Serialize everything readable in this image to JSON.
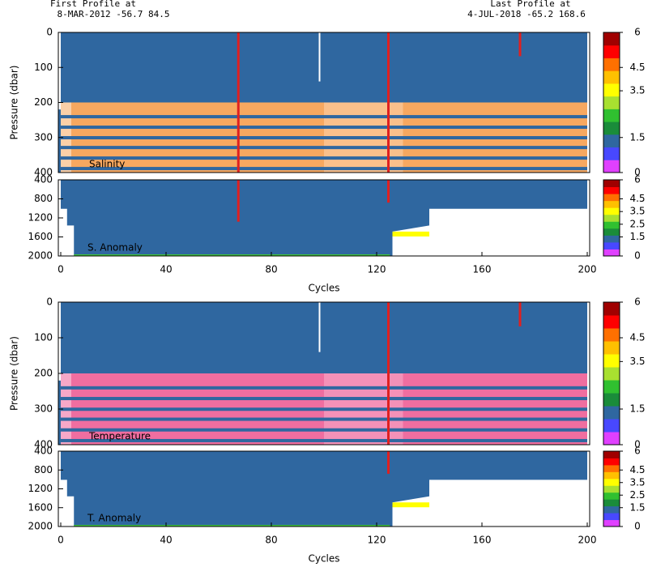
{
  "header": {
    "first_title": "First Profile at",
    "first_info": "8-MAR-2012    -56.7    84.5",
    "last_title": "Last Profile at",
    "last_info": "4-JUL-2018    -65.2   168.6"
  },
  "chart_data": [
    {
      "type": "section",
      "label": "Salinity",
      "ylabel": "Pressure (dbar)",
      "ylim": [
        0,
        400
      ],
      "yticks": [
        0,
        100,
        200,
        300,
        400
      ],
      "xlim": [
        0,
        200
      ],
      "colorbar": {
        "lim": [
          0,
          6
        ],
        "ticks": [
          6,
          4.5,
          3.5,
          1.5,
          0
        ],
        "colors": [
          "#e040ff",
          "#4848ff",
          "#2f67a0",
          "#1a8c3a",
          "#30c030",
          "#a8e030",
          "#ffff00",
          "#ffc000",
          "#ff7000",
          "#ff0000",
          "#a00000"
        ]
      }
    },
    {
      "type": "section",
      "label": "S. Anomaly",
      "ylim": [
        400,
        2000
      ],
      "yticks": [
        400,
        800,
        1200,
        1600,
        2000
      ],
      "xlim": [
        0,
        200
      ],
      "xticks": [
        0,
        40,
        80,
        120,
        160,
        200
      ],
      "xlabel": "Cycles",
      "colorbar": {
        "lim": [
          0,
          6
        ],
        "ticks": [
          6,
          4.5,
          3.5,
          2.5,
          1.5,
          0
        ],
        "colors": [
          "#e040ff",
          "#4848ff",
          "#2f67a0",
          "#1a8c3a",
          "#30c030",
          "#a8e030",
          "#ffff00",
          "#ffc000",
          "#ff7000",
          "#ff0000",
          "#a00000"
        ]
      }
    },
    {
      "type": "section",
      "label": "Temperature",
      "ylabel": "Pressure (dbar)",
      "ylim": [
        0,
        400
      ],
      "yticks": [
        0,
        100,
        200,
        300,
        400
      ],
      "xlim": [
        0,
        200
      ],
      "colorbar": {
        "lim": [
          0,
          6
        ],
        "ticks": [
          6,
          4.5,
          3.5,
          1.5,
          0
        ],
        "colors": [
          "#e040ff",
          "#4848ff",
          "#2f67a0",
          "#1a8c3a",
          "#30c030",
          "#a8e030",
          "#ffff00",
          "#ffc000",
          "#ff7000",
          "#ff0000",
          "#a00000"
        ]
      }
    },
    {
      "type": "section",
      "label": "T. Anomaly",
      "ylim": [
        400,
        2000
      ],
      "yticks": [
        400,
        800,
        1200,
        1600,
        2000
      ],
      "xlim": [
        0,
        200
      ],
      "xticks": [
        0,
        40,
        80,
        120,
        160,
        200
      ],
      "xlabel": "Cycles",
      "colorbar": {
        "lim": [
          0,
          6
        ],
        "ticks": [
          6,
          4.5,
          3.5,
          2.5,
          1.5,
          0
        ],
        "colors": [
          "#e040ff",
          "#4848ff",
          "#2f67a0",
          "#1a8c3a",
          "#30c030",
          "#a8e030",
          "#ffff00",
          "#ffc000",
          "#ff7000",
          "#ff0000",
          "#a00000"
        ]
      }
    }
  ]
}
